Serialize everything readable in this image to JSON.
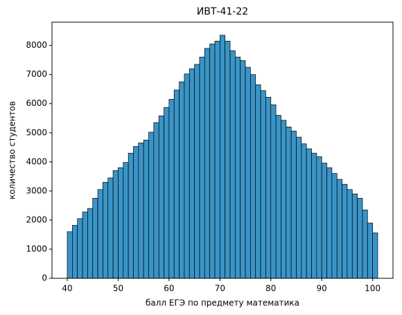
{
  "chart_data": {
    "type": "histogram",
    "title": "ИВТ-41-22",
    "x_label": "балл ЕГЭ по предмету математика",
    "y_label": "количество студентов",
    "bins": [
      40,
      41,
      42,
      43,
      44,
      45,
      46,
      47,
      48,
      49,
      50,
      51,
      52,
      53,
      54,
      55,
      56,
      57,
      58,
      59,
      60,
      61,
      62,
      63,
      64,
      65,
      66,
      67,
      68,
      69,
      70,
      71,
      72,
      73,
      74,
      75,
      76,
      77,
      78,
      79,
      80,
      81,
      82,
      83,
      84,
      85,
      86,
      87,
      88,
      89,
      90,
      91,
      92,
      93,
      94,
      95,
      96,
      97,
      98,
      99,
      100,
      101
    ],
    "counts": [
      1600,
      1820,
      2050,
      2280,
      2400,
      2750,
      3050,
      3300,
      3450,
      3700,
      3800,
      3980,
      4300,
      4530,
      4650,
      4750,
      5020,
      5350,
      5580,
      5870,
      6150,
      6470,
      6750,
      7020,
      7200,
      7350,
      7600,
      7900,
      8050,
      8150,
      8350,
      8150,
      7820,
      7600,
      7480,
      7250,
      7000,
      6650,
      6450,
      6220,
      5960,
      5600,
      5430,
      5200,
      5060,
      4850,
      4620,
      4450,
      4300,
      4180,
      3960,
      3800,
      3600,
      3400,
      3230,
      3050,
      2900,
      2750,
      2350,
      1900,
      1560
    ],
    "color": "#3a94c8",
    "xlim": [
      37,
      104
    ],
    "ylim": [
      0,
      8800
    ],
    "xticks": [
      40,
      50,
      60,
      70,
      80,
      90,
      100
    ],
    "yticks": [
      0,
      1000,
      2000,
      3000,
      4000,
      5000,
      6000,
      7000,
      8000
    ]
  }
}
